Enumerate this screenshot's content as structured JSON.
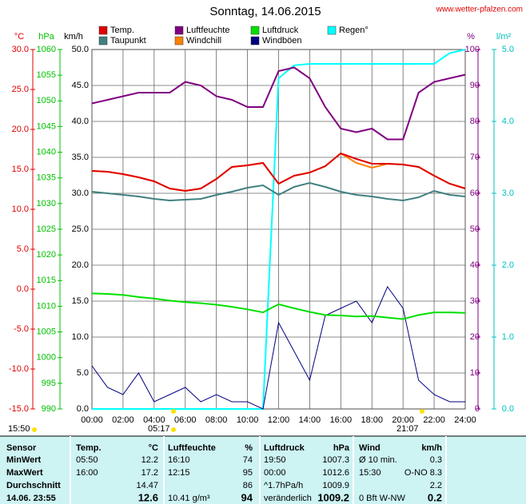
{
  "chart_data": {
    "type": "line",
    "title": "Sonntag, 14.06.2015",
    "source": "www.wetter-pfalzen.com",
    "x": [
      0,
      1,
      2,
      3,
      4,
      5,
      6,
      7,
      8,
      9,
      10,
      11,
      12,
      13,
      14,
      15,
      16,
      17,
      18,
      19,
      20,
      21,
      22,
      23,
      24
    ],
    "xlim": [
      0,
      24
    ],
    "xticks": [
      {
        "value": 0,
        "label": "00:00"
      },
      {
        "value": 2,
        "label": "02:00"
      },
      {
        "value": 4,
        "label": "04:00"
      },
      {
        "value": 6,
        "label": "06:00"
      },
      {
        "value": 8,
        "label": "08:00"
      },
      {
        "value": 10,
        "label": "10:00"
      },
      {
        "value": 12,
        "label": "12:00"
      },
      {
        "value": 14,
        "label": "14:00"
      },
      {
        "value": 16,
        "label": "16:00"
      },
      {
        "value": 18,
        "label": "18:00"
      },
      {
        "value": 20,
        "label": "20:00"
      },
      {
        "value": 22,
        "label": "22:00"
      },
      {
        "value": 24,
        "label": "24:00"
      }
    ],
    "grid": true,
    "axes": {
      "temp": {
        "label": "°C",
        "color": "#e00000",
        "lim": [
          -15,
          30
        ],
        "ticks": [
          {
            "value": 30,
            "label": "30.0"
          },
          {
            "value": 25,
            "label": "25.0"
          },
          {
            "value": 20,
            "label": "20.0"
          },
          {
            "value": 15,
            "label": "15.0"
          },
          {
            "value": 10,
            "label": "10.0"
          },
          {
            "value": 5,
            "label": "5.0"
          },
          {
            "value": 0,
            "label": "0.0"
          },
          {
            "value": -5,
            "label": "-5.0"
          },
          {
            "value": -10,
            "label": "-10.0"
          },
          {
            "value": -15,
            "label": "-15.0"
          }
        ]
      },
      "press": {
        "label": "hPa",
        "color": "#00c000",
        "lim": [
          990,
          1060
        ],
        "ticks": [
          1060,
          1055,
          1050,
          1045,
          1040,
          1035,
          1030,
          1025,
          1020,
          1015,
          1010,
          1005,
          1000,
          995,
          990
        ]
      },
      "wind": {
        "label": "km/h",
        "color": "#000000",
        "lim": [
          0,
          50
        ],
        "ticks": [
          {
            "value": 50,
            "label": "50.0"
          },
          {
            "value": 45,
            "label": "45.0"
          },
          {
            "value": 40,
            "label": "40.0"
          },
          {
            "value": 35,
            "label": "35.0"
          },
          {
            "value": 30,
            "label": "30.0"
          },
          {
            "value": 25,
            "label": "25.0"
          },
          {
            "value": 20,
            "label": "20.0"
          },
          {
            "value": 15,
            "label": "15.0"
          },
          {
            "value": 10,
            "label": "10.0"
          },
          {
            "value": 5,
            "label": "5.0"
          },
          {
            "value": 0,
            "label": "0.0"
          }
        ]
      },
      "hum": {
        "label": "%",
        "color": "#800080",
        "lim": [
          0,
          100
        ],
        "ticks": [
          100,
          90,
          80,
          70,
          60,
          50,
          40,
          30,
          20,
          10,
          0
        ]
      },
      "rain": {
        "label": "l/m²",
        "color": "#00c0c0",
        "lim": [
          0,
          5
        ],
        "ticks": [
          {
            "value": 5,
            "label": "5.0"
          },
          {
            "value": 4,
            "label": "4.0"
          },
          {
            "value": 3,
            "label": "3.0"
          },
          {
            "value": 2,
            "label": "2.0"
          },
          {
            "value": 1,
            "label": "1.0"
          },
          {
            "value": 0,
            "label": "0.0"
          }
        ]
      }
    },
    "series": [
      {
        "name": "Temp.",
        "color": "#e00000",
        "axis": "temp",
        "values": [
          14.8,
          14.7,
          14.4,
          14.0,
          13.5,
          12.6,
          12.3,
          12.6,
          13.8,
          15.3,
          15.5,
          15.8,
          13.2,
          14.2,
          14.6,
          15.4,
          17.0,
          16.3,
          15.7,
          15.7,
          15.6,
          15.3,
          14.2,
          13.2,
          12.6
        ]
      },
      {
        "name": "Luftfeuchte",
        "color": "#800080",
        "axis": "hum",
        "values": [
          85,
          86,
          87,
          88,
          88,
          88,
          91,
          90,
          87,
          86,
          84,
          84,
          94,
          95,
          92,
          84,
          78,
          77,
          78,
          75,
          75,
          88,
          91,
          92,
          93
        ]
      },
      {
        "name": "Luftdruck",
        "color": "#00e000",
        "axis": "press",
        "values": [
          1012.5,
          1012.4,
          1012.2,
          1011.8,
          1011.5,
          1011.1,
          1010.8,
          1010.6,
          1010.3,
          1009.9,
          1009.4,
          1008.8,
          1010.4,
          1009.6,
          1008.9,
          1008.3,
          1008.2,
          1008.0,
          1008.1,
          1007.8,
          1007.5,
          1008.3,
          1008.8,
          1008.8,
          1008.7
        ]
      },
      {
        "name": "Regen°",
        "color": "#00ffff",
        "axis": "rain",
        "values": [
          0,
          0,
          0,
          0,
          0,
          0,
          0,
          0,
          0,
          0,
          0,
          0,
          4.6,
          4.78,
          4.8,
          4.8,
          4.8,
          4.8,
          4.8,
          4.8,
          4.8,
          4.8,
          4.8,
          4.95,
          5.0
        ]
      },
      {
        "name": "Taupunkt",
        "color": "#408080",
        "axis": "temp",
        "values": [
          12.2,
          12.0,
          11.8,
          11.6,
          11.3,
          11.1,
          11.2,
          11.3,
          11.8,
          12.2,
          12.7,
          13.0,
          11.8,
          12.8,
          13.3,
          12.8,
          12.2,
          11.8,
          11.6,
          11.3,
          11.1,
          11.5,
          12.3,
          11.8,
          11.6
        ]
      },
      {
        "name": "Windchill",
        "color": "#ff8000",
        "axis": "temp",
        "values": [
          14.8,
          14.7,
          14.4,
          14.0,
          13.5,
          12.6,
          12.3,
          12.6,
          13.8,
          15.3,
          15.5,
          15.8,
          13.2,
          14.2,
          14.6,
          15.4,
          17.0,
          15.8,
          15.2,
          15.7,
          15.6,
          15.3,
          14.2,
          13.2,
          12.6
        ]
      },
      {
        "name": "Windböen",
        "color": "#000080",
        "axis": "wind",
        "values": [
          6,
          3,
          2,
          5,
          1,
          2,
          3,
          1,
          2,
          1,
          1,
          0,
          12,
          8,
          4,
          13,
          14,
          15,
          12,
          17,
          14,
          4,
          2,
          1,
          1
        ]
      }
    ],
    "markers": [
      "15:50",
      "05:17",
      "21:07"
    ]
  },
  "table": {
    "header": [
      "Sensor",
      "Temp.",
      "°C",
      "Luftfeuchte",
      "%",
      "Luftdruck",
      "hPa",
      "Wind",
      "km/h"
    ],
    "rows": [
      [
        "MinWert",
        "05:50",
        12.2,
        "16:10",
        74,
        "19:50",
        1007.3,
        "Ø 10 min.",
        0.3
      ],
      [
        "MaxWert",
        "16:00",
        17.2,
        "12:15",
        95,
        "00:00",
        1012.6,
        "15:30",
        "O-NO 8.3"
      ],
      [
        "Durchschnitt",
        null,
        14.47,
        null,
        86,
        "^1.7hPa/h",
        1009.9,
        null,
        2.2
      ],
      [
        "14.06. 23:55",
        null,
        12.6,
        "10.41 g/m³",
        94,
        "veränderlich",
        1009.2,
        "0 Bft W-NW",
        0.2
      ]
    ]
  }
}
